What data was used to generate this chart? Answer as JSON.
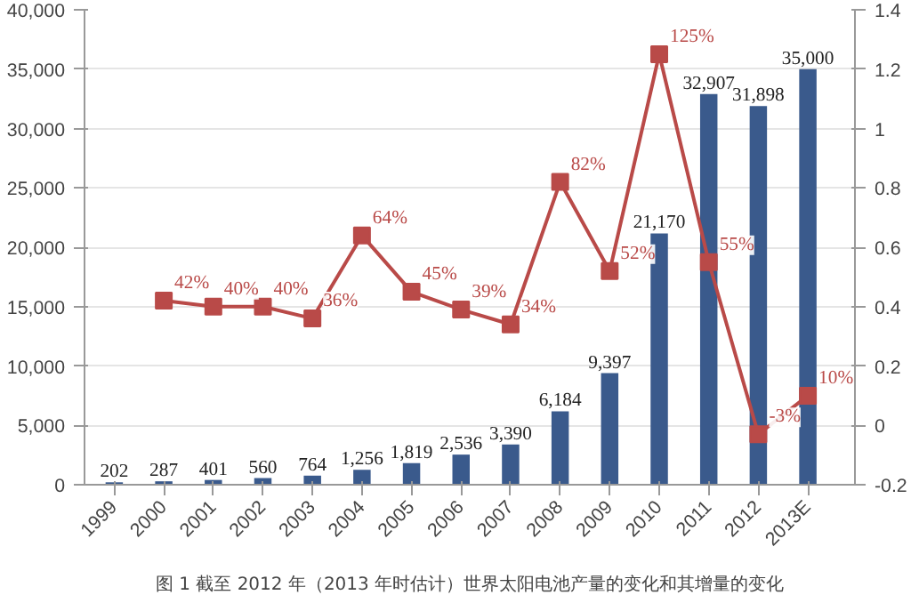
{
  "chart_data": {
    "type": "bar",
    "categories": [
      "1999",
      "2000",
      "2001",
      "2002",
      "2003",
      "2004",
      "2005",
      "2006",
      "2007",
      "2008",
      "2009",
      "2010",
      "2011",
      "2012",
      "2013E"
    ],
    "series": [
      {
        "color": "#3a5a8c",
        "values": [
          202,
          287,
          401,
          560,
          764,
          1256,
          1819,
          2536,
          3390,
          6184,
          9397,
          21170,
          32907,
          31898,
          35000
        ],
        "value_labels": [
          "202",
          "287",
          "401",
          "560",
          "764",
          "1,256",
          "1,819",
          "2,536",
          "3,390",
          "6,184",
          "9,397",
          "21,170",
          "32,907",
          "31,898",
          "35,000"
        ]
      },
      {
        "type": "line",
        "axis": "y2",
        "color": "#b94a48",
        "marker": "square",
        "values": [
          null,
          0.42,
          0.4,
          0.4,
          0.36,
          0.64,
          0.45,
          0.39,
          0.34,
          0.82,
          0.52,
          1.25,
          0.55,
          -0.03,
          0.1
        ],
        "value_labels": [
          null,
          "42%",
          "40%",
          "40%",
          "36%",
          "64%",
          "45%",
          "39%",
          "34%",
          "82%",
          "52%",
          "125%",
          "55%",
          "-3%",
          "10%"
        ]
      }
    ],
    "ylim": [
      0,
      40000
    ],
    "yticks": [
      {
        "value": 0,
        "label": "0"
      },
      {
        "value": 5000,
        "label": "5,000"
      },
      {
        "value": 10000,
        "label": "10,000"
      },
      {
        "value": 15000,
        "label": "15,000"
      },
      {
        "value": 20000,
        "label": "20,000"
      },
      {
        "value": 25000,
        "label": "25,000"
      },
      {
        "value": 30000,
        "label": "30,000"
      },
      {
        "value": 35000,
        "label": "35,000"
      },
      {
        "value": 40000,
        "label": "40,000"
      }
    ],
    "y2lim": [
      -0.2,
      1.4
    ],
    "y2ticks": [
      -0.2,
      0,
      0.2,
      0.4,
      0.6,
      0.8,
      1,
      1.2,
      1.4
    ],
    "grid": "y",
    "annotations": [
      "图 1 截至 2012 年（2013 年时估计）世界太阳电池产量的变化和其增量的变化"
    ]
  }
}
